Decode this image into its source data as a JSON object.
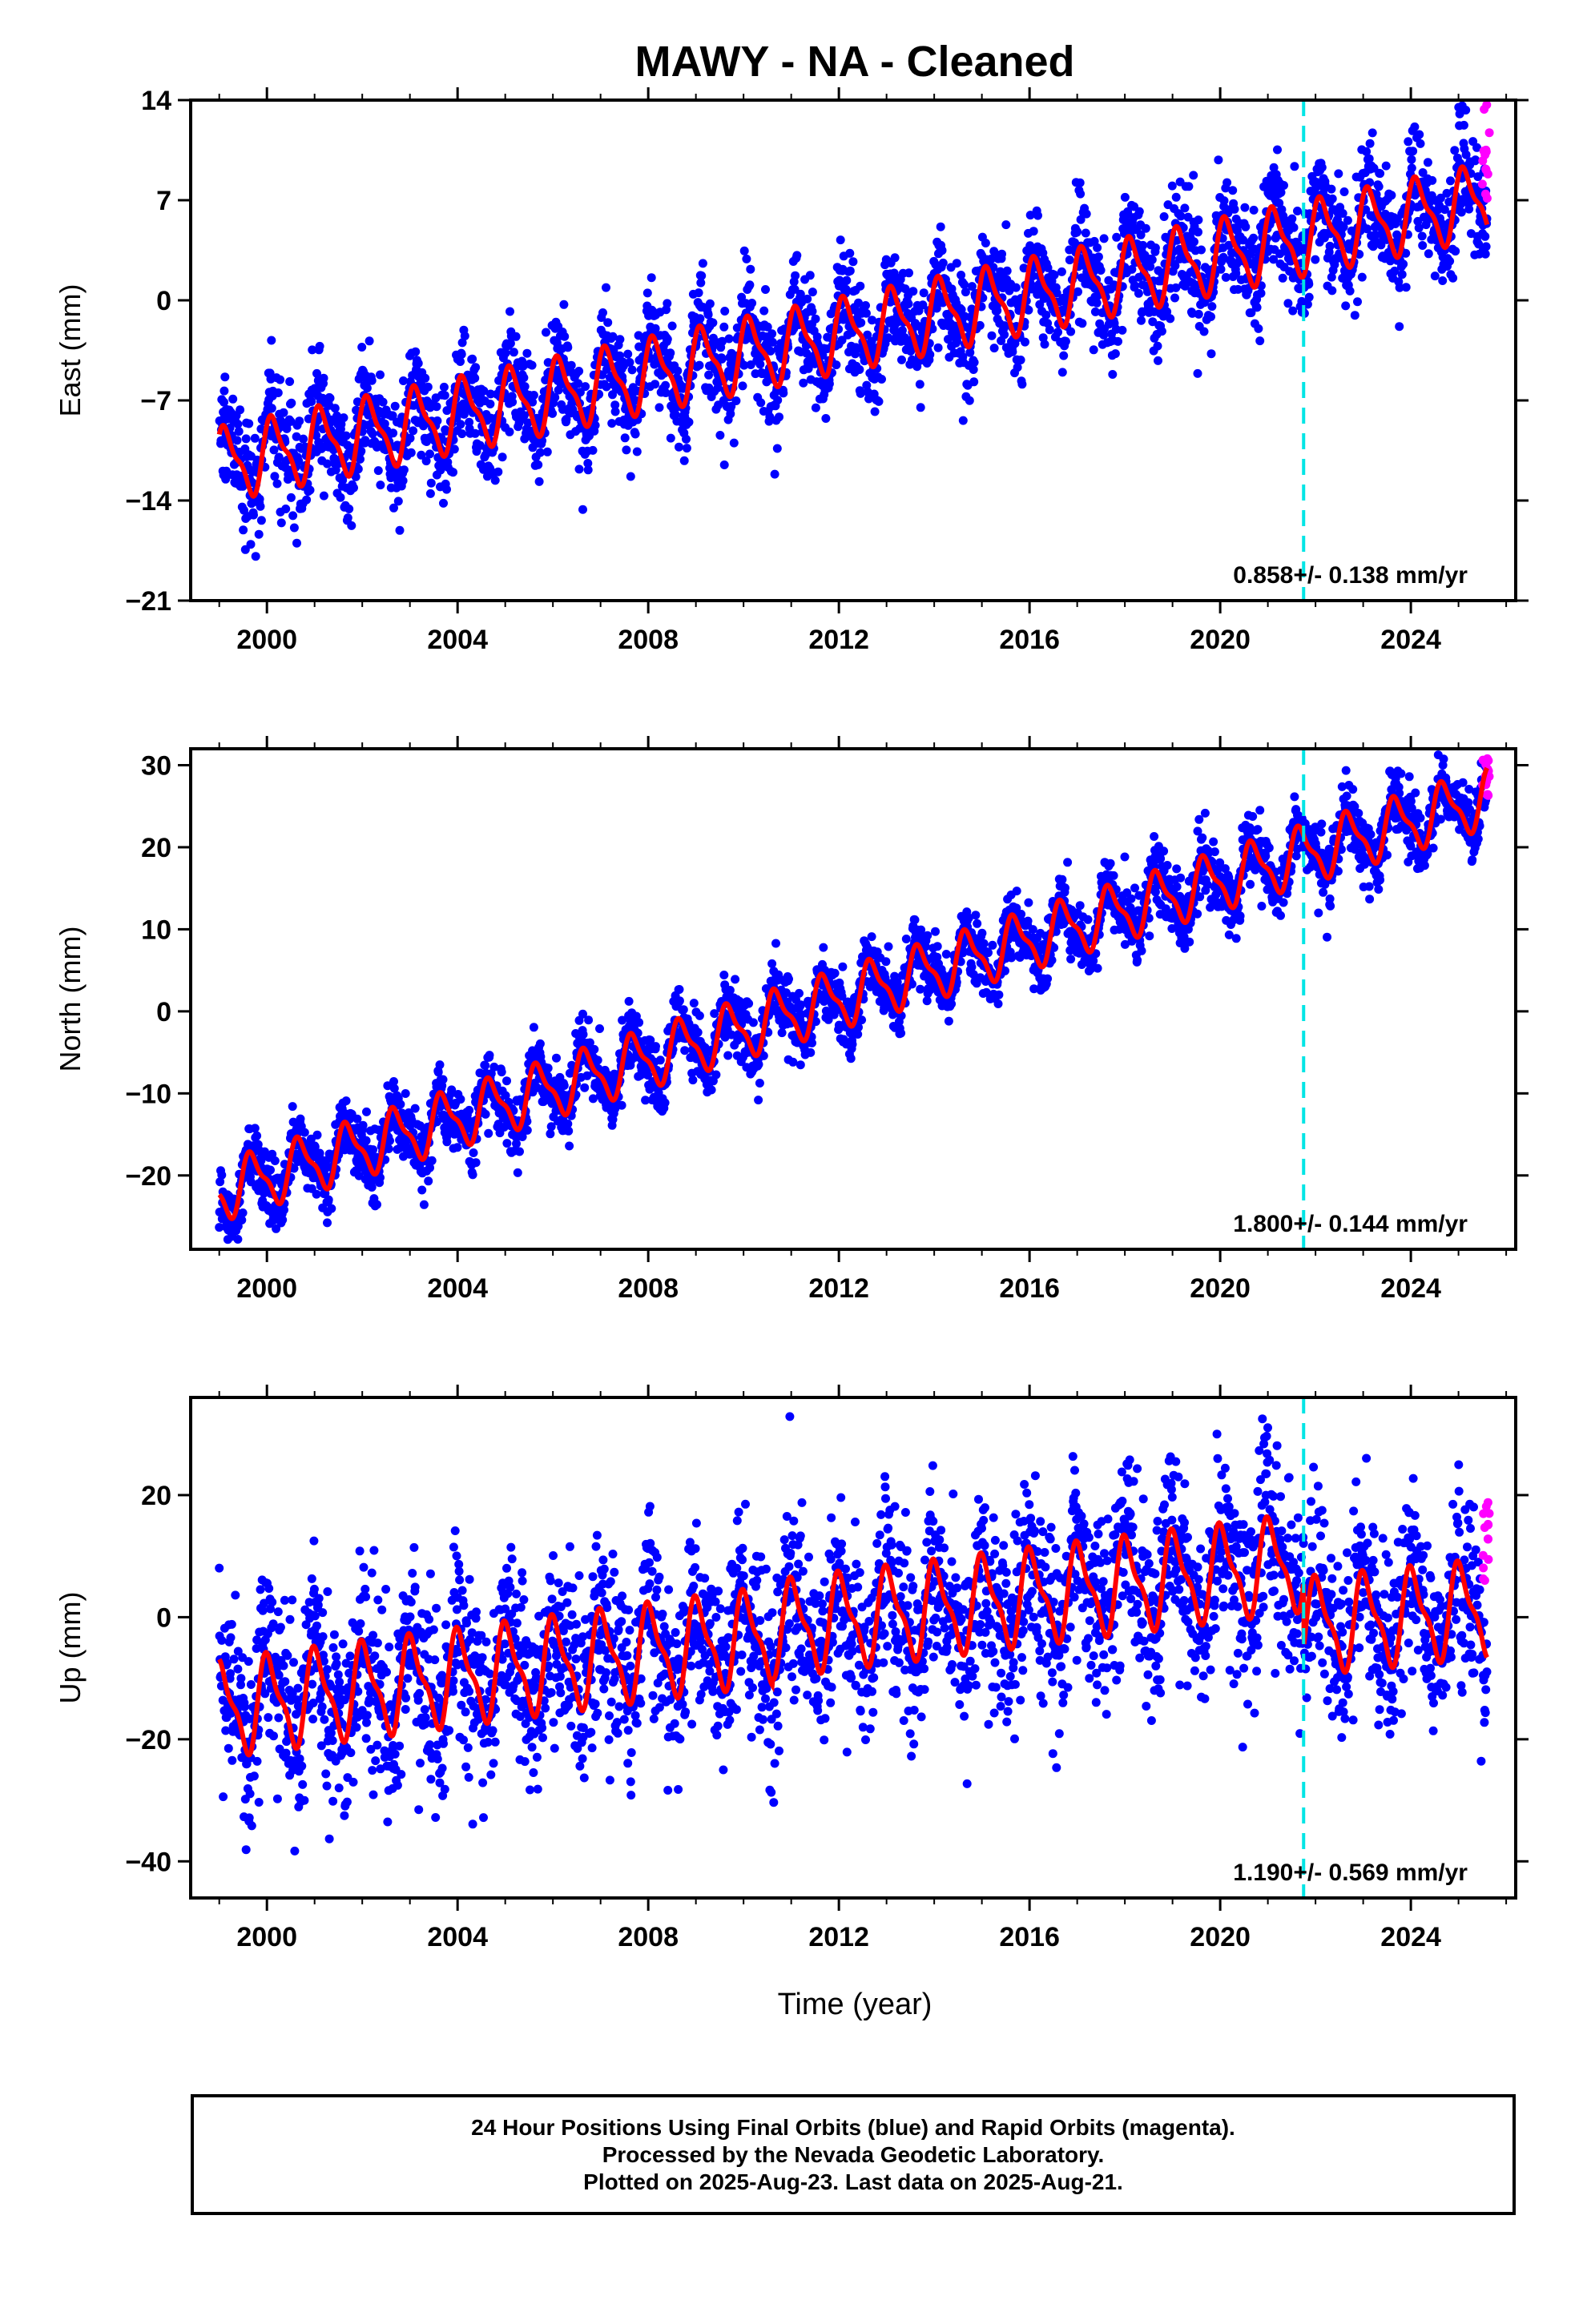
{
  "title": "MAWY  - NA - Cleaned",
  "colors": {
    "final": "#0000ff",
    "rapid": "#ff00ff",
    "model": "#ff0000",
    "event": "#00e5e5"
  },
  "chart_data": [
    {
      "type": "scatter",
      "component": "east",
      "ylabel": "East (mm)",
      "xlim": [
        1998.4,
        2026.2
      ],
      "ylim": [
        -21,
        14
      ],
      "yticks": [
        -21,
        -14,
        -7,
        0,
        7,
        14
      ],
      "ytick_labels": [
        "−21",
        "−14",
        "−7",
        "0",
        "7",
        "14"
      ],
      "xticks": [
        2000,
        2004,
        2008,
        2012,
        2016,
        2020,
        2024
      ],
      "xtick_labels": [
        "2000",
        "2004",
        "2008",
        "2012",
        "2016",
        "2020",
        "2024"
      ],
      "rate_label": "0.858+/- 0.138 mm/yr",
      "event_line_x": 2021.75,
      "trend": {
        "y_start": -11.5,
        "y_end": 7.0,
        "seasonal_amp": 2.3,
        "noise_sd": 1.9,
        "seasonal_phase": 0.1
      },
      "rapid_points": {
        "x_start": 2025.5,
        "x_end": 2025.65,
        "y_min": 7,
        "y_max": 14
      }
    },
    {
      "type": "scatter",
      "component": "north",
      "ylabel": "North (mm)",
      "xlim": [
        1998.4,
        2026.2
      ],
      "ylim": [
        -29,
        32
      ],
      "yticks": [
        -20,
        -10,
        0,
        10,
        20,
        30
      ],
      "ytick_labels": [
        "−20",
        "−10",
        "0",
        "10",
        "20",
        "30"
      ],
      "xticks": [
        2000,
        2004,
        2008,
        2012,
        2016,
        2020,
        2024
      ],
      "xtick_labels": [
        "2000",
        "2004",
        "2008",
        "2012",
        "2016",
        "2020",
        "2024"
      ],
      "rate_label": "1.800+/- 0.144 mm/yr",
      "event_line_x": 2021.75,
      "trend": {
        "y_start": -22.0,
        "y_end": 26.0,
        "seasonal_amp": 3.2,
        "noise_sd": 2.0,
        "seasonal_phase": 0.55
      },
      "rapid_points": {
        "x_start": 2025.5,
        "x_end": 2025.65,
        "y_min": 26,
        "y_max": 31
      }
    },
    {
      "type": "scatter",
      "component": "up",
      "ylabel": "Up (mm)",
      "xlabel": "Time (year)",
      "xlim": [
        1998.4,
        2026.2
      ],
      "ylim": [
        -46,
        36
      ],
      "yticks": [
        -40,
        -20,
        0,
        20
      ],
      "ytick_labels": [
        "−40",
        "−20",
        "0",
        "20"
      ],
      "xticks": [
        2000,
        2004,
        2008,
        2012,
        2016,
        2020,
        2024
      ],
      "xtick_labels": [
        "2000",
        "2004",
        "2008",
        "2012",
        "2016",
        "2020",
        "2024"
      ],
      "rate_label": "1.190+/- 0.569 mm/yr",
      "event_line_x": 2021.75,
      "trend_segments": [
        {
          "x0": 1999.0,
          "x1": 2010.6,
          "y0": -15.0,
          "y1": -3.0
        },
        {
          "x0": 2010.6,
          "x1": 2021.75,
          "y0": -2.0,
          "y1": 9.0
        },
        {
          "x0": 2021.75,
          "x1": 2025.6,
          "y0": -1.5,
          "y1": 1.5
        }
      ],
      "seasonal_amp": 7.0,
      "noise_sd": 7.5,
      "seasonal_phase": 0.2,
      "rapid_points": {
        "x_start": 2025.5,
        "x_end": 2025.65,
        "y_min": 5,
        "y_max": 19
      }
    }
  ],
  "footer": {
    "line1": "24 Hour Positions Using Final Orbits (blue) and Rapid Orbits (magenta).",
    "line2": "Processed by the Nevada Geodetic Laboratory.",
    "line3": "Plotted on 2025-Aug-23. Last data on 2025-Aug-21."
  }
}
